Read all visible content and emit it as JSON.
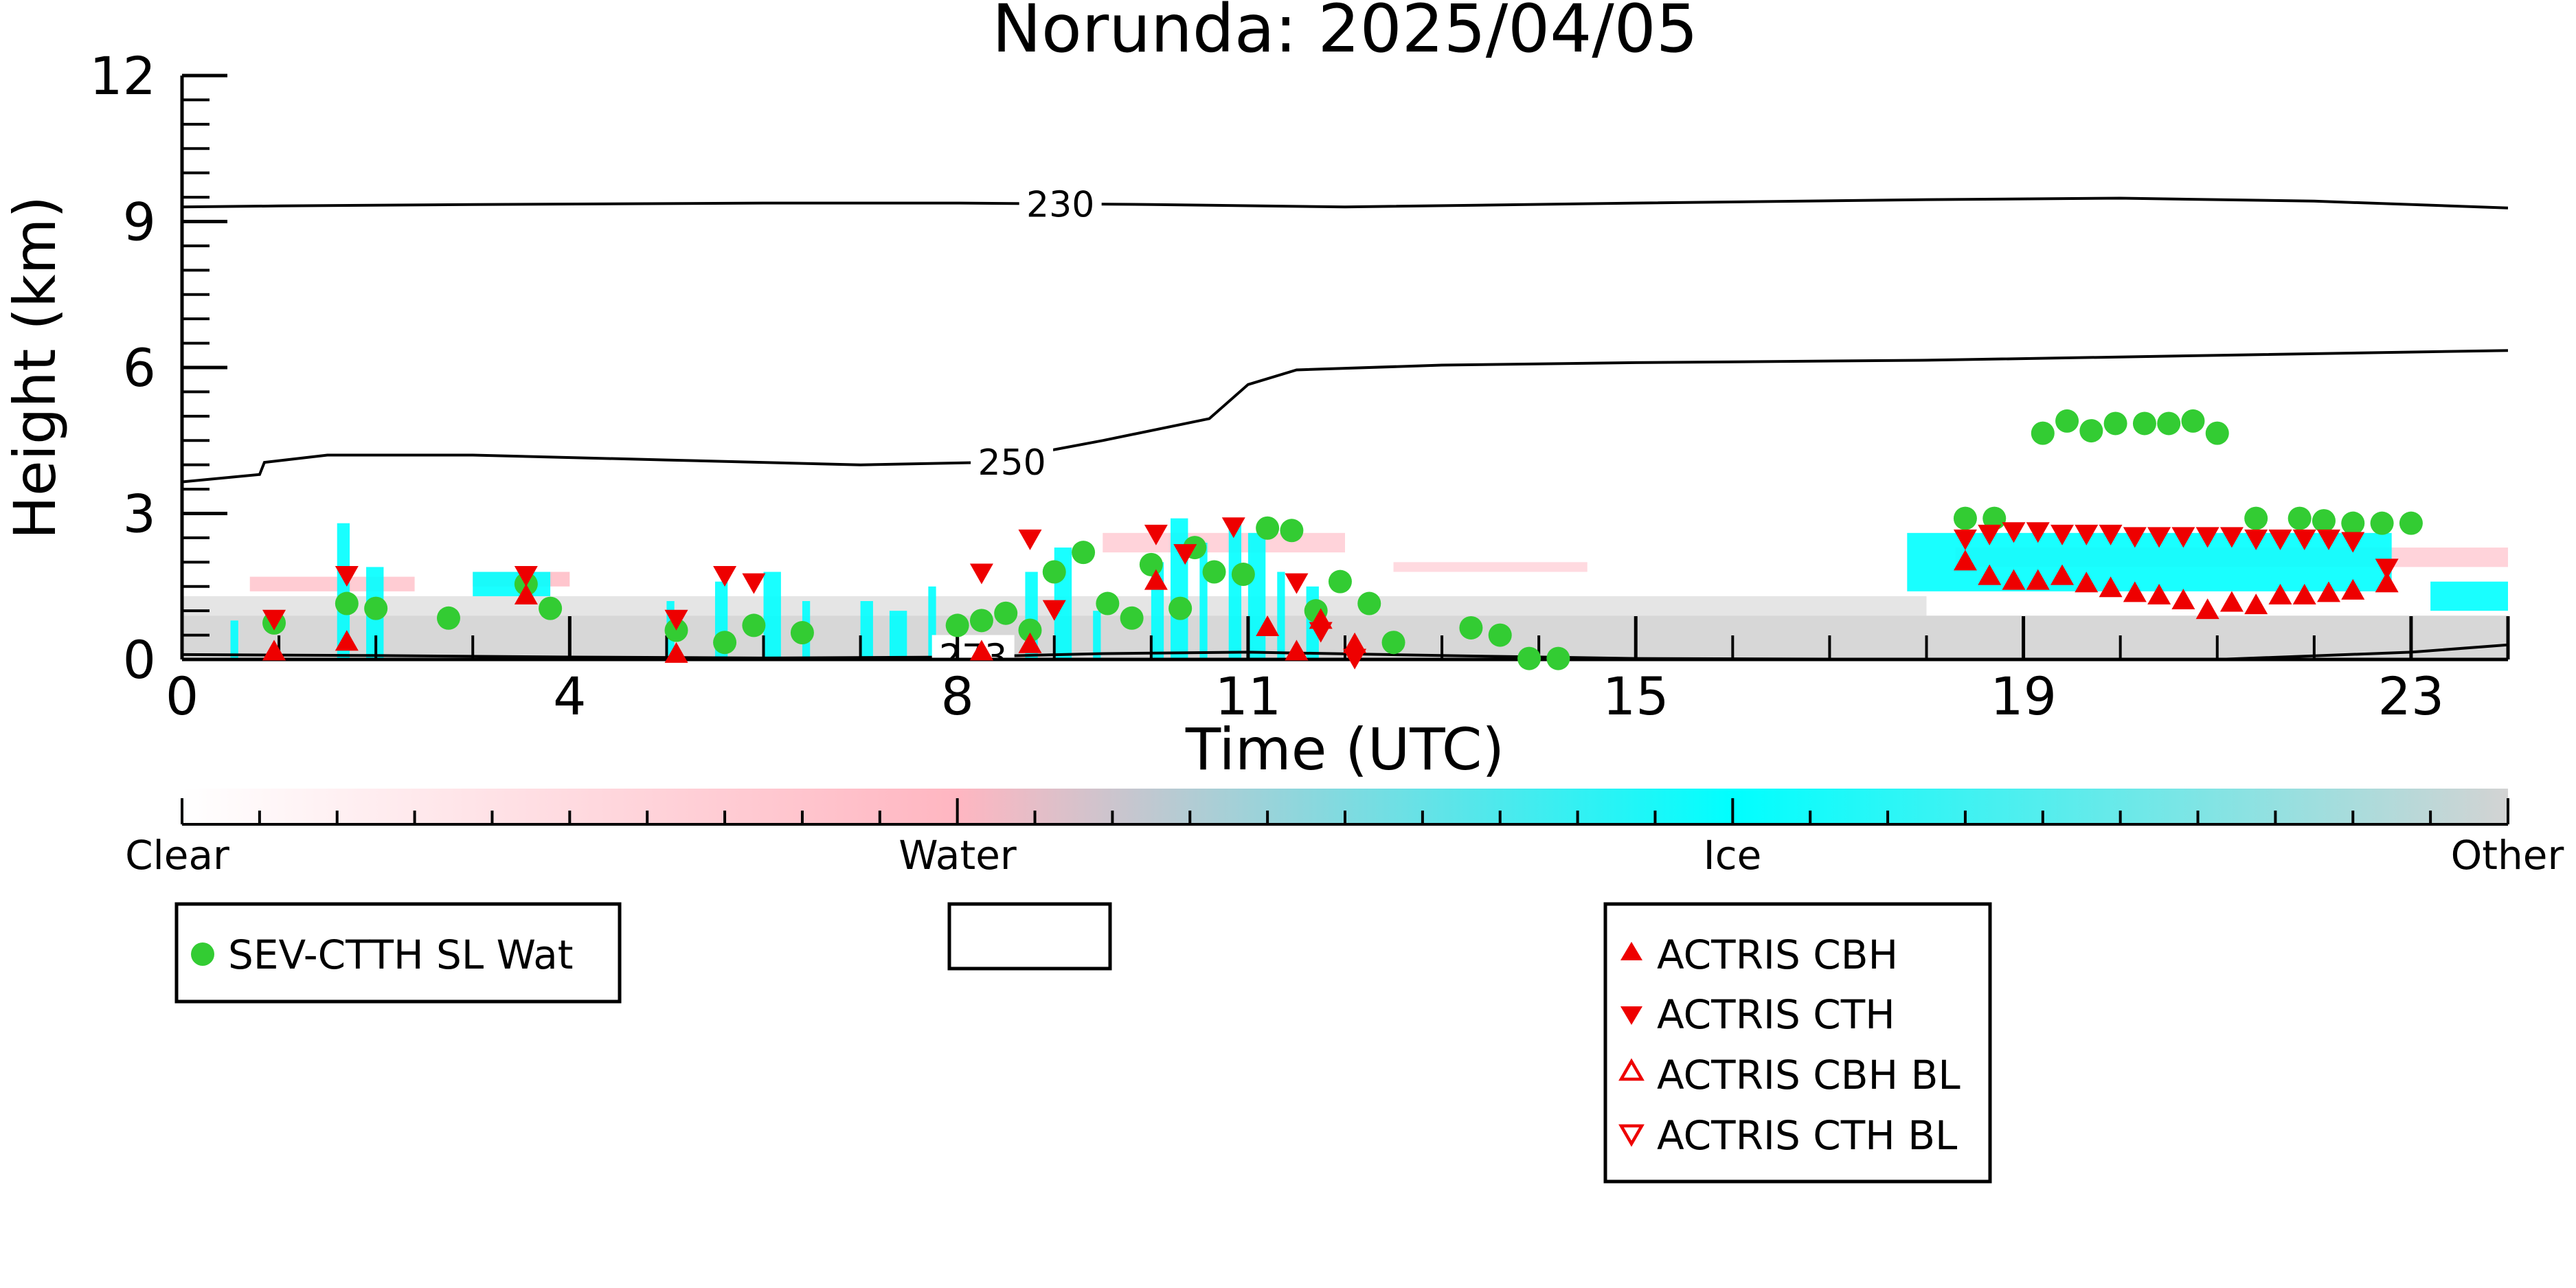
{
  "chart_data": {
    "type": "scatter",
    "title": "Norunda: 2025/04/05",
    "xlabel": "Time (UTC)",
    "ylabel": "Height (km)",
    "xlim": [
      0,
      24
    ],
    "ylim": [
      0,
      12
    ],
    "xticks": [
      0,
      4,
      8,
      11,
      15,
      19,
      23
    ],
    "yticks": [
      0,
      3,
      6,
      9,
      12
    ],
    "grid": false,
    "colorbar": {
      "labels": [
        "Clear",
        "Water",
        "Ice",
        "Other"
      ],
      "colors": [
        "#ffffff",
        "#ffb6c1",
        "#00ffff",
        "#d3d3d3"
      ]
    },
    "contours": [
      {
        "label": "230",
        "x": [
          0,
          1,
          3,
          6,
          8,
          10,
          12,
          15,
          18,
          20,
          22,
          24
        ],
        "y": [
          9.3,
          9.32,
          9.35,
          9.38,
          9.38,
          9.35,
          9.3,
          9.38,
          9.45,
          9.48,
          9.42,
          9.28
        ]
      },
      {
        "label": "250",
        "x": [
          0,
          0.8,
          0.85,
          1.5,
          3,
          5,
          7,
          8.3,
          9.5,
          10.6,
          11,
          11.5,
          13,
          15,
          18,
          21,
          24
        ],
        "y": [
          3.65,
          3.8,
          4.05,
          4.2,
          4.2,
          4.1,
          4.0,
          4.05,
          4.5,
          4.95,
          5.65,
          5.95,
          6.05,
          6.1,
          6.15,
          6.25,
          6.35
        ]
      },
      {
        "label": "273",
        "x": [
          0,
          2,
          4,
          6,
          8,
          9.5,
          11,
          13,
          15,
          18,
          21,
          23,
          24
        ],
        "y": [
          0.1,
          0.08,
          0.05,
          0.03,
          0.05,
          0.12,
          0.15,
          0.08,
          0.02,
          0.0,
          0.0,
          0.15,
          0.3
        ]
      }
    ],
    "series": [
      {
        "name": "SEV-CTTH SL Wat",
        "marker": "circle",
        "color": "#33cc33",
        "x": [
          0.95,
          1.7,
          2.0,
          2.75,
          3.55,
          3.8,
          5.1,
          5.6,
          5.9,
          6.4,
          8.0,
          8.25,
          8.5,
          8.75,
          9.0,
          9.3,
          9.55,
          9.8,
          10.0,
          10.3,
          10.45,
          10.65,
          10.95,
          11.2,
          11.45,
          11.7,
          11.95,
          12.25,
          12.5,
          13.3,
          13.6,
          13.9,
          14.2,
          19.2,
          19.45,
          19.7,
          19.95,
          20.25,
          20.5,
          20.75,
          21.0,
          21.4,
          18.4,
          18.7,
          21.85,
          22.1,
          22.4,
          22.7,
          23.0
        ],
        "y": [
          0.75,
          1.15,
          1.05,
          0.85,
          1.55,
          1.05,
          0.6,
          0.35,
          0.7,
          0.55,
          0.7,
          0.8,
          0.95,
          0.6,
          1.8,
          2.2,
          1.15,
          0.85,
          1.95,
          1.05,
          2.3,
          1.8,
          1.75,
          2.7,
          2.65,
          1.0,
          1.6,
          1.15,
          0.35,
          0.65,
          0.5,
          0.02,
          0.02,
          4.65,
          4.9,
          4.7,
          4.85,
          4.85,
          4.85,
          4.9,
          4.65,
          2.9,
          2.9,
          2.9,
          2.9,
          2.85,
          2.8,
          2.8,
          2.8
        ]
      },
      {
        "name": "ACTRIS CBH",
        "marker": "triangle-up",
        "color": "#ee0000",
        "x": [
          0.95,
          1.7,
          3.55,
          5.1,
          8.25,
          8.75,
          10.05,
          11.2,
          11.5,
          11.75,
          12.1,
          18.4,
          18.65,
          18.9,
          19.15,
          19.4,
          19.65,
          19.9,
          20.15,
          20.4,
          20.65,
          20.9,
          21.15,
          21.4,
          21.65,
          21.9,
          22.15,
          22.4,
          22.75
        ],
        "y": [
          0.15,
          0.35,
          1.3,
          0.1,
          0.15,
          0.3,
          1.6,
          0.65,
          0.15,
          0.8,
          0.3,
          2.0,
          1.7,
          1.6,
          1.6,
          1.7,
          1.55,
          1.45,
          1.35,
          1.3,
          1.2,
          1.0,
          1.15,
          1.1,
          1.3,
          1.3,
          1.35,
          1.4,
          1.55
        ]
      },
      {
        "name": "ACTRIS CTH",
        "marker": "triangle-down",
        "color": "#ee0000",
        "x": [
          0.95,
          1.7,
          3.55,
          5.1,
          5.6,
          5.9,
          8.25,
          8.75,
          9.0,
          10.05,
          10.35,
          10.85,
          11.5,
          11.75,
          12.1,
          18.4,
          18.65,
          18.9,
          19.15,
          19.4,
          19.65,
          19.9,
          20.15,
          20.4,
          20.65,
          20.9,
          21.15,
          21.4,
          21.65,
          21.9,
          22.15,
          22.4,
          22.75
        ],
        "y": [
          0.85,
          1.75,
          1.75,
          0.85,
          1.75,
          1.6,
          1.8,
          2.5,
          1.05,
          2.6,
          2.2,
          2.75,
          1.6,
          0.6,
          0.05,
          2.5,
          2.6,
          2.65,
          2.65,
          2.6,
          2.6,
          2.6,
          2.55,
          2.55,
          2.55,
          2.55,
          2.55,
          2.5,
          2.5,
          2.5,
          2.5,
          2.45,
          1.9
        ]
      },
      {
        "name": "ACTRIS CBH BL",
        "marker": "triangle-up-open",
        "color": "#ee0000",
        "x": [],
        "y": []
      },
      {
        "name": "ACTRIS CTH BL",
        "marker": "triangle-down-open",
        "color": "#ee0000",
        "x": [],
        "y": []
      }
    ],
    "legends": [
      {
        "entries": [
          "SEV-CTTH SL Wat"
        ]
      },
      {
        "entries": []
      },
      {
        "entries": [
          "ACTRIS CBH",
          "ACTRIS CTH",
          "ACTRIS CBH BL",
          "ACTRIS CTH BL"
        ]
      }
    ]
  }
}
